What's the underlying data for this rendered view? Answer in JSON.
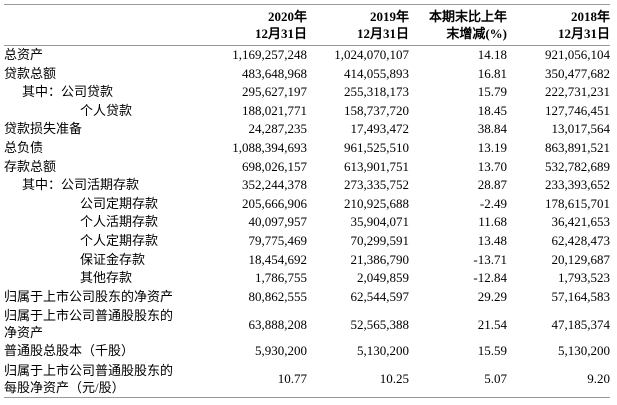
{
  "header": [
    [
      "2020年",
      "12月31日"
    ],
    [
      "2019年",
      "12月31日"
    ],
    [
      "本期末比上年",
      "末增减(%)"
    ],
    [
      "2018年",
      "12月31日"
    ]
  ],
  "rows": [
    {
      "label": [
        "总资产"
      ],
      "values": [
        "1,169,257,248",
        "1,024,070,107",
        "14.18",
        "921,056,104"
      ]
    },
    {
      "label": [
        "贷款总额"
      ],
      "values": [
        "483,648,968",
        "414,055,893",
        "16.81",
        "350,477,682"
      ]
    },
    {
      "label": [
        "其中：公司贷款"
      ],
      "values": [
        "295,627,197",
        "255,318,173",
        "15.79",
        "222,731,231"
      ]
    },
    {
      "label": [
        "个人贷款"
      ],
      "values": [
        "188,021,771",
        "158,737,720",
        "18.45",
        "127,746,451"
      ]
    },
    {
      "label": [
        "贷款损失准备"
      ],
      "values": [
        "24,287,235",
        "17,493,472",
        "38.84",
        "13,017,564"
      ]
    },
    {
      "label": [
        "总负债"
      ],
      "values": [
        "1,088,394,693",
        "961,525,510",
        "13.19",
        "863,891,521"
      ]
    },
    {
      "label": [
        "存款总额"
      ],
      "values": [
        "698,026,157",
        "613,901,751",
        "13.70",
        "532,782,689"
      ]
    },
    {
      "label": [
        "其中：公司活期存款"
      ],
      "values": [
        "352,244,378",
        "273,335,752",
        "28.87",
        "233,393,652"
      ]
    },
    {
      "label": [
        "公司定期存款"
      ],
      "values": [
        "205,666,906",
        "210,925,688",
        "-2.49",
        "178,615,701"
      ]
    },
    {
      "label": [
        "个人活期存款"
      ],
      "values": [
        "40,097,957",
        "35,904,071",
        "11.68",
        "36,421,653"
      ]
    },
    {
      "label": [
        "个人定期存款"
      ],
      "values": [
        "79,775,469",
        "70,299,591",
        "13.48",
        "62,428,473"
      ]
    },
    {
      "label": [
        "保证金存款"
      ],
      "values": [
        "18,454,692",
        "21,386,790",
        "-13.71",
        "20,129,687"
      ]
    },
    {
      "label": [
        "其他存款"
      ],
      "values": [
        "1,786,755",
        "2,049,859",
        "-12.84",
        "1,793,523"
      ]
    },
    {
      "label": [
        "归属于上市公司股东的净资产"
      ],
      "values": [
        "80,862,555",
        "62,544,597",
        "29.29",
        "57,164,583"
      ]
    },
    {
      "label": [
        "归属于上市公司普通股股东的",
        "净资产"
      ],
      "values": [
        "63,888,208",
        "52,565,388",
        "21.54",
        "47,185,374"
      ]
    },
    {
      "label": [
        "普通股总股本（千股）"
      ],
      "values": [
        "5,930,200",
        "5,130,200",
        "15.59",
        "5,130,200"
      ]
    },
    {
      "label": [
        "归属于上市公司普通股股东的",
        "每股净资产（元/股）"
      ],
      "values": [
        "10.77",
        "10.25",
        "5.07",
        "9.20"
      ]
    }
  ]
}
